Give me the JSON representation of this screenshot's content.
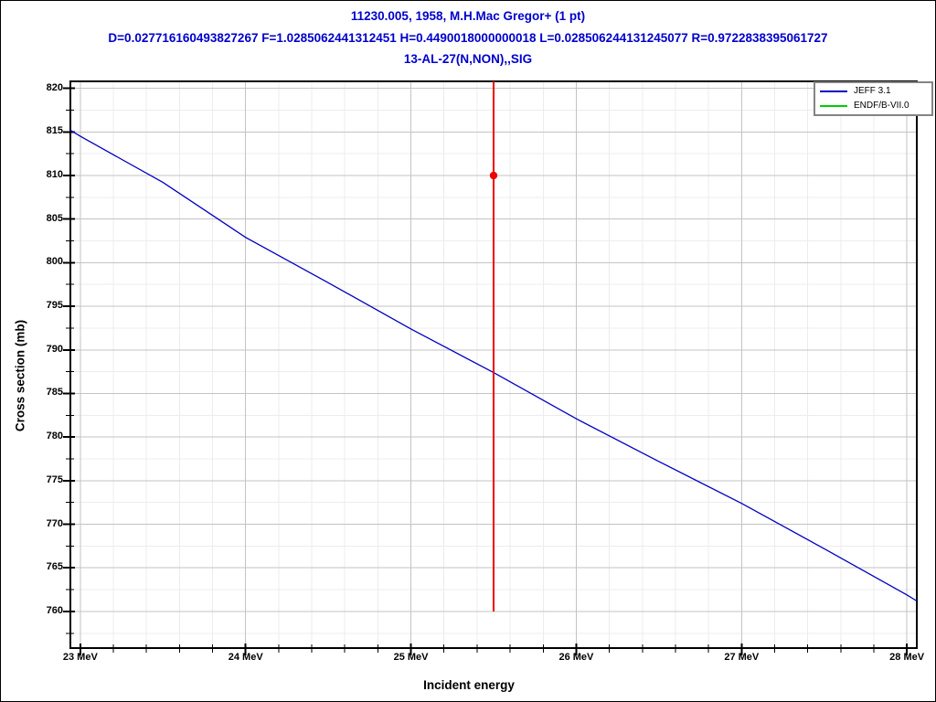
{
  "header": {
    "line1": "11230.005, 1958, M.H.Mac Gregor+ (1 pt)",
    "line2": "D=0.027716160493827267 F=1.0285062441312451 H=0.4490018000000018 L=0.028506244131245077 R=0.9722838395061727",
    "line3": "13-AL-27(N,NON),,SIG",
    "color": "#0000cc"
  },
  "chart_data": {
    "type": "line",
    "title": "11230.005, 1958, M.H.Mac Gregor+ (1 pt)",
    "stats_line": "D=0.027716160493827267 F=1.0285062441312451 H=0.4490018000000018 L=0.028506244131245077 R=0.9722838395061727",
    "reaction": "13-AL-27(N,NON),,SIG",
    "xlabel": "Incident energy",
    "ylabel": "Cross section (mb)",
    "x_unit": "MeV",
    "y_unit": "mb",
    "xlim": [
      22.94,
      28.06
    ],
    "ylim": [
      755.8,
      820.8
    ],
    "x_major_ticks": [
      23,
      24,
      25,
      26,
      27,
      28
    ],
    "x_tick_labels": [
      "23 MeV",
      "24 MeV",
      "25 MeV",
      "26 MeV",
      "27 MeV",
      "28 MeV"
    ],
    "x_minor_step": 0.2,
    "y_major_ticks": [
      760,
      765,
      770,
      775,
      780,
      785,
      790,
      795,
      800,
      805,
      810,
      815,
      820
    ],
    "y_tick_labels": [
      "760",
      "765",
      "770",
      "775",
      "780",
      "785",
      "790",
      "795",
      "800",
      "805",
      "810",
      "815",
      "820"
    ],
    "y_minor_step": 2.5,
    "grid": {
      "on": true,
      "major_color": "#c3c3c3",
      "minor_color": "#ececec"
    },
    "axis_color": "#000000",
    "legend": {
      "position": "top-right",
      "border_color": "#848484"
    },
    "series": [
      {
        "name": "JEFF 3.1",
        "color": "#0000c0",
        "points": [
          [
            22.94,
            815.2
          ],
          [
            23.0,
            814.5
          ],
          [
            23.5,
            809.2
          ],
          [
            24.0,
            802.9
          ],
          [
            24.5,
            797.7
          ],
          [
            25.0,
            792.4
          ],
          [
            25.5,
            787.4
          ],
          [
            26.0,
            782.1
          ],
          [
            26.5,
            777.2
          ],
          [
            27.0,
            772.4
          ],
          [
            27.5,
            767.2
          ],
          [
            28.0,
            761.9
          ],
          [
            28.06,
            761.2
          ]
        ]
      },
      {
        "name": "ENDF/B-VII.0",
        "color": "#00cc00",
        "points": [],
        "note": "entry shown in legend; curve not separately visible in plot"
      }
    ],
    "exp_points": [
      {
        "x": 25.5,
        "y": 810.0,
        "y_err_low": 760.0,
        "y_err_high": null,
        "err_high_clipped_at_plot_top": true,
        "color": "#ee0000",
        "marker": "circle"
      }
    ]
  }
}
